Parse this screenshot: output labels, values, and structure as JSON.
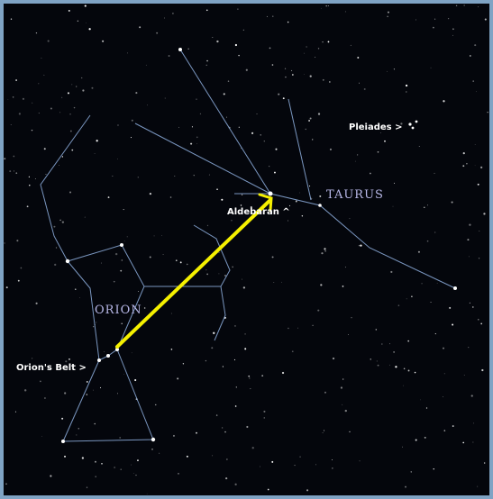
{
  "labels": {
    "pleiades": "Pleiades >",
    "taurus": "TAURUS",
    "aldebaran": "Aldebaran ^",
    "orion": "ORION",
    "belt": "Orion's Belt >"
  }
}
